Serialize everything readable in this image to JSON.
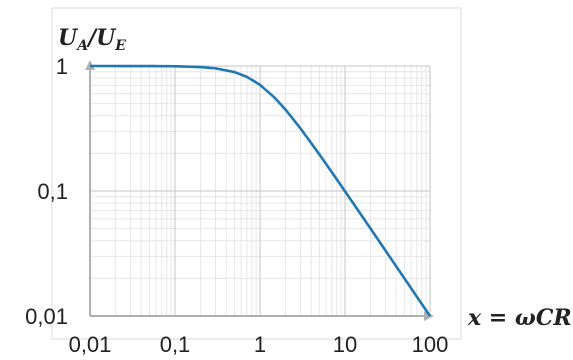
{
  "chart_data": {
    "type": "line",
    "title": "",
    "xlabel": "x = ωCR",
    "ylabel_main": "U",
    "ylabel_sub1": "A",
    "ylabel_sep": "/",
    "ylabel_main2": "U",
    "ylabel_sub2": "E",
    "x_scale": "log",
    "y_scale": "log",
    "xlim": [
      0.01,
      100
    ],
    "ylim": [
      0.01,
      1
    ],
    "grid": true,
    "legend": "none",
    "x_ticks": [
      {
        "value": 0.01,
        "label": "0,01"
      },
      {
        "value": 0.1,
        "label": "0,1"
      },
      {
        "value": 1,
        "label": "1"
      },
      {
        "value": 10,
        "label": "10"
      },
      {
        "value": 100,
        "label": "100"
      }
    ],
    "y_ticks": [
      {
        "value": 0.01,
        "label": "0,01"
      },
      {
        "value": 0.1,
        "label": "0,1"
      },
      {
        "value": 1,
        "label": "1"
      }
    ],
    "series": [
      {
        "x": [
          0.01,
          0.02,
          0.05,
          0.1,
          0.2,
          0.3,
          0.5,
          0.7,
          1,
          1.5,
          2,
          3,
          5,
          7,
          10,
          20,
          50,
          100
        ],
        "y": [
          1.0,
          0.9998,
          0.9988,
          0.995,
          0.9806,
          0.9578,
          0.8944,
          0.8192,
          0.7071,
          0.5547,
          0.4472,
          0.3162,
          0.1961,
          0.1414,
          0.0995,
          0.05,
          0.02,
          0.01
        ]
      }
    ],
    "colors": {
      "line": "#1f77b4",
      "grid_major": "#cfcfcf",
      "grid_minor": "#e6e6e6",
      "axis": "#9a9a9a",
      "frame": "#d8d8d8"
    }
  }
}
